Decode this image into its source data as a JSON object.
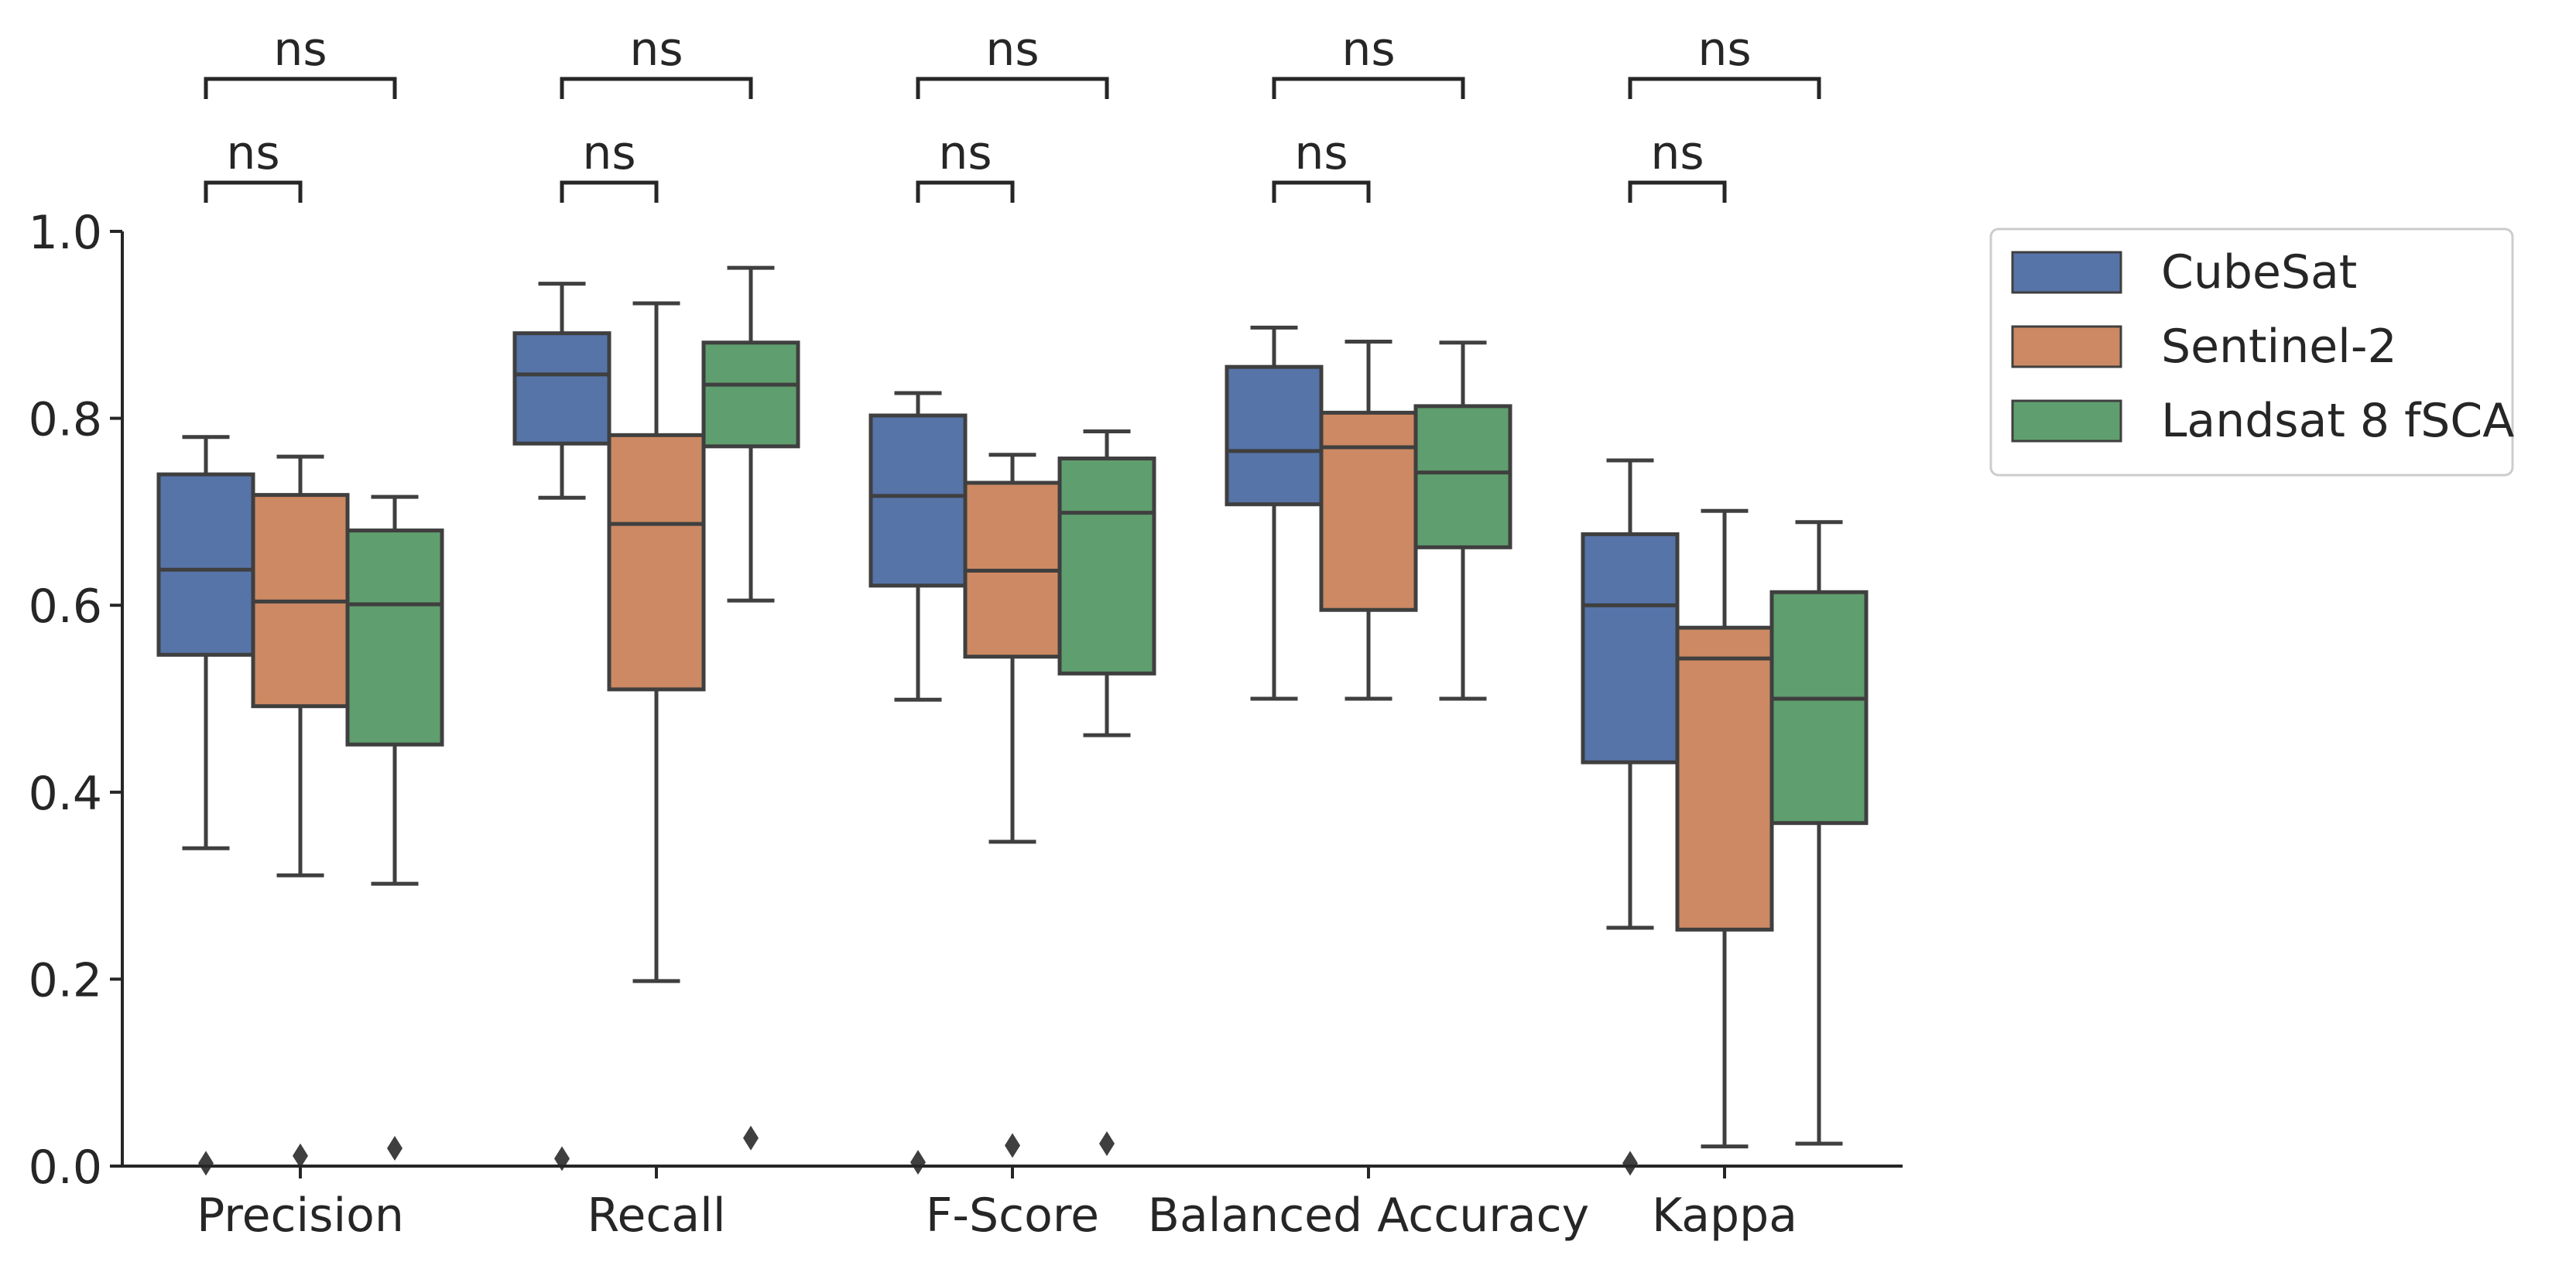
{
  "chart_data": {
    "type": "box",
    "categories": [
      "Precision",
      "Recall",
      "F-Score",
      "Balanced Accuracy",
      "Kappa"
    ],
    "ylim": [
      0,
      1.0
    ],
    "yticks": [
      0.0,
      0.2,
      0.4,
      0.6,
      0.8,
      1.0
    ],
    "ytick_labels": [
      "0.0",
      "0.2",
      "0.4",
      "0.6",
      "0.8",
      "1.0"
    ],
    "xlabel": "",
    "ylabel": "",
    "grid": false,
    "legend_position": "outside-top-right",
    "series": [
      {
        "name": "CubeSat",
        "color": "#5674A8",
        "boxes": [
          {
            "whisker_low": 0.34,
            "q1": 0.547,
            "median": 0.638,
            "q3": 0.74,
            "whisker_high": 0.78,
            "outliers": [
              0.003
            ]
          },
          {
            "whisker_low": 0.715,
            "q1": 0.773,
            "median": 0.847,
            "q3": 0.891,
            "whisker_high": 0.944,
            "outliers": [
              0.008
            ]
          },
          {
            "whisker_low": 0.499,
            "q1": 0.621,
            "median": 0.717,
            "q3": 0.803,
            "whisker_high": 0.827,
            "outliers": [
              0.004
            ]
          },
          {
            "whisker_low": 0.5,
            "q1": 0.708,
            "median": 0.765,
            "q3": 0.855,
            "whisker_high": 0.897,
            "outliers": []
          },
          {
            "whisker_low": 0.255,
            "q1": 0.432,
            "median": 0.6,
            "q3": 0.676,
            "whisker_high": 0.755,
            "outliers": [
              0.003
            ]
          }
        ]
      },
      {
        "name": "Sentinel-2",
        "color": "#CC8963",
        "boxes": [
          {
            "whisker_low": 0.311,
            "q1": 0.492,
            "median": 0.604,
            "q3": 0.718,
            "whisker_high": 0.759,
            "outliers": [
              0.011
            ]
          },
          {
            "whisker_low": 0.198,
            "q1": 0.51,
            "median": 0.687,
            "q3": 0.782,
            "whisker_high": 0.923,
            "outliers": []
          },
          {
            "whisker_low": 0.347,
            "q1": 0.545,
            "median": 0.637,
            "q3": 0.731,
            "whisker_high": 0.761,
            "outliers": [
              0.022
            ]
          },
          {
            "whisker_low": 0.5,
            "q1": 0.595,
            "median": 0.769,
            "q3": 0.806,
            "whisker_high": 0.882,
            "outliers": []
          },
          {
            "whisker_low": 0.021,
            "q1": 0.253,
            "median": 0.543,
            "q3": 0.576,
            "whisker_high": 0.701,
            "outliers": []
          }
        ]
      },
      {
        "name": "Landsat 8 fSCA",
        "color": "#5F9E6E",
        "boxes": [
          {
            "whisker_low": 0.302,
            "q1": 0.451,
            "median": 0.601,
            "q3": 0.68,
            "whisker_high": 0.716,
            "outliers": [
              0.019
            ]
          },
          {
            "whisker_low": 0.605,
            "q1": 0.77,
            "median": 0.836,
            "q3": 0.881,
            "whisker_high": 0.961,
            "outliers": [
              0.03
            ]
          },
          {
            "whisker_low": 0.461,
            "q1": 0.527,
            "median": 0.699,
            "q3": 0.757,
            "whisker_high": 0.786,
            "outliers": [
              0.024
            ]
          },
          {
            "whisker_low": 0.5,
            "q1": 0.662,
            "median": 0.742,
            "q3": 0.813,
            "whisker_high": 0.881,
            "outliers": []
          },
          {
            "whisker_low": 0.024,
            "q1": 0.367,
            "median": 0.5,
            "q3": 0.614,
            "whisker_high": 0.689,
            "outliers": []
          }
        ]
      }
    ],
    "annotations": [
      {
        "category": "Precision",
        "pair": [
          "CubeSat",
          "Sentinel-2"
        ],
        "label": "ns"
      },
      {
        "category": "Precision",
        "pair": [
          "CubeSat",
          "Landsat 8 fSCA"
        ],
        "label": "ns"
      },
      {
        "category": "Recall",
        "pair": [
          "CubeSat",
          "Sentinel-2"
        ],
        "label": "ns"
      },
      {
        "category": "Recall",
        "pair": [
          "CubeSat",
          "Landsat 8 fSCA"
        ],
        "label": "ns"
      },
      {
        "category": "F-Score",
        "pair": [
          "CubeSat",
          "Sentinel-2"
        ],
        "label": "ns"
      },
      {
        "category": "F-Score",
        "pair": [
          "CubeSat",
          "Landsat 8 fSCA"
        ],
        "label": "ns"
      },
      {
        "category": "Balanced Accuracy",
        "pair": [
          "CubeSat",
          "Sentinel-2"
        ],
        "label": "ns"
      },
      {
        "category": "Balanced Accuracy",
        "pair": [
          "CubeSat",
          "Landsat 8 fSCA"
        ],
        "label": "ns"
      },
      {
        "category": "Kappa",
        "pair": [
          "CubeSat",
          "Sentinel-2"
        ],
        "label": "ns"
      },
      {
        "category": "Kappa",
        "pair": [
          "CubeSat",
          "Landsat 8 fSCA"
        ],
        "label": "ns"
      }
    ]
  }
}
